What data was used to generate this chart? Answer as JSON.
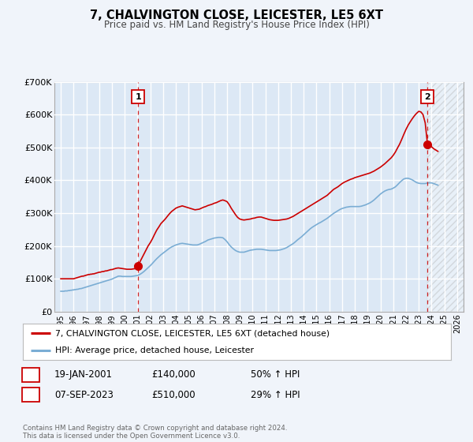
{
  "title": "7, CHALVINGTON CLOSE, LEICESTER, LE5 6XT",
  "subtitle": "Price paid vs. HM Land Registry's House Price Index (HPI)",
  "bg_color": "#f0f4fa",
  "plot_bg_color": "#dce8f5",
  "grid_color": "#ffffff",
  "red_line_color": "#cc0000",
  "blue_line_color": "#7aadd4",
  "marker1_date": 2001.05,
  "marker1_value": 140000,
  "marker2_date": 2023.68,
  "marker2_value": 510000,
  "vline1_date": 2001.05,
  "vline2_date": 2023.68,
  "ylim": [
    0,
    700000
  ],
  "xlim_start": 1994.5,
  "xlim_end": 2026.5,
  "ylabel_ticks": [
    0,
    100000,
    200000,
    300000,
    400000,
    500000,
    600000,
    700000
  ],
  "ylabel_labels": [
    "£0",
    "£100K",
    "£200K",
    "£300K",
    "£400K",
    "£500K",
    "£600K",
    "£700K"
  ],
  "xtick_years": [
    1995,
    1996,
    1997,
    1998,
    1999,
    2000,
    2001,
    2002,
    2003,
    2004,
    2005,
    2006,
    2007,
    2008,
    2009,
    2010,
    2011,
    2012,
    2013,
    2014,
    2015,
    2016,
    2017,
    2018,
    2019,
    2020,
    2021,
    2022,
    2023,
    2024,
    2025,
    2026
  ],
  "legend_red_label": "7, CHALVINGTON CLOSE, LEICESTER, LE5 6XT (detached house)",
  "legend_blue_label": "HPI: Average price, detached house, Leicester",
  "annotation1_label": "1",
  "annotation2_label": "2",
  "table_row1": [
    "1",
    "19-JAN-2001",
    "£140,000",
    "50% ↑ HPI"
  ],
  "table_row2": [
    "2",
    "07-SEP-2023",
    "£510,000",
    "29% ↑ HPI"
  ],
  "footer_text": "Contains HM Land Registry data © Crown copyright and database right 2024.\nThis data is licensed under the Open Government Licence v3.0.",
  "red_line_data_x": [
    1995.0,
    1995.08,
    1995.17,
    1995.25,
    1995.33,
    1995.42,
    1995.5,
    1995.58,
    1995.67,
    1995.75,
    1995.83,
    1995.92,
    1996.0,
    1996.08,
    1996.17,
    1996.25,
    1996.33,
    1996.42,
    1996.5,
    1996.58,
    1996.67,
    1996.75,
    1996.83,
    1996.92,
    1997.0,
    1997.08,
    1997.17,
    1997.25,
    1997.33,
    1997.42,
    1997.5,
    1997.58,
    1997.67,
    1997.75,
    1997.83,
    1997.92,
    1998.0,
    1998.08,
    1998.17,
    1998.25,
    1998.33,
    1998.42,
    1998.5,
    1998.58,
    1998.67,
    1998.75,
    1998.83,
    1998.92,
    1999.0,
    1999.17,
    1999.33,
    1999.5,
    1999.67,
    1999.83,
    2000.0,
    2000.17,
    2000.33,
    2000.5,
    2000.67,
    2000.83,
    2001.05,
    2001.17,
    2001.33,
    2001.5,
    2001.67,
    2001.83,
    2002.0,
    2002.17,
    2002.33,
    2002.5,
    2002.67,
    2002.83,
    2003.0,
    2003.17,
    2003.33,
    2003.5,
    2003.67,
    2003.83,
    2004.0,
    2004.17,
    2004.33,
    2004.5,
    2004.67,
    2004.83,
    2005.0,
    2005.17,
    2005.33,
    2005.5,
    2005.67,
    2005.83,
    2006.0,
    2006.17,
    2006.33,
    2006.5,
    2006.67,
    2006.83,
    2007.0,
    2007.17,
    2007.33,
    2007.5,
    2007.67,
    2007.83,
    2008.0,
    2008.17,
    2008.33,
    2008.5,
    2008.67,
    2008.83,
    2009.0,
    2009.17,
    2009.33,
    2009.5,
    2009.67,
    2009.83,
    2010.0,
    2010.17,
    2010.33,
    2010.5,
    2010.67,
    2010.83,
    2011.0,
    2011.17,
    2011.33,
    2011.5,
    2011.67,
    2011.83,
    2012.0,
    2012.17,
    2012.33,
    2012.5,
    2012.67,
    2012.83,
    2013.0,
    2013.17,
    2013.33,
    2013.5,
    2013.67,
    2013.83,
    2014.0,
    2014.17,
    2014.33,
    2014.5,
    2014.67,
    2014.83,
    2015.0,
    2015.17,
    2015.33,
    2015.5,
    2015.67,
    2015.83,
    2016.0,
    2016.17,
    2016.33,
    2016.5,
    2016.67,
    2016.83,
    2017.0,
    2017.17,
    2017.33,
    2017.5,
    2017.67,
    2017.83,
    2018.0,
    2018.17,
    2018.33,
    2018.5,
    2018.67,
    2018.83,
    2019.0,
    2019.17,
    2019.33,
    2019.5,
    2019.67,
    2019.83,
    2020.0,
    2020.17,
    2020.33,
    2020.5,
    2020.67,
    2020.83,
    2021.0,
    2021.17,
    2021.33,
    2021.5,
    2021.67,
    2021.83,
    2022.0,
    2022.17,
    2022.33,
    2022.5,
    2022.67,
    2022.83,
    2023.0,
    2023.17,
    2023.33,
    2023.5,
    2023.68,
    2024.0,
    2024.17,
    2024.5
  ],
  "red_line_data_y": [
    100000,
    100000,
    100000,
    100000,
    100000,
    100000,
    100000,
    100000,
    100000,
    100000,
    100000,
    100000,
    100000,
    101000,
    102000,
    103000,
    104000,
    105000,
    106000,
    107000,
    108000,
    108000,
    109000,
    110000,
    111000,
    112000,
    113000,
    113000,
    114000,
    114000,
    115000,
    115000,
    116000,
    117000,
    118000,
    119000,
    120000,
    120000,
    121000,
    122000,
    122000,
    123000,
    124000,
    124000,
    125000,
    126000,
    127000,
    128000,
    128000,
    130000,
    132000,
    133000,
    132000,
    131000,
    130000,
    129000,
    129000,
    129000,
    130000,
    131000,
    140000,
    150000,
    162000,
    175000,
    188000,
    200000,
    210000,
    222000,
    235000,
    248000,
    258000,
    268000,
    275000,
    282000,
    290000,
    298000,
    305000,
    310000,
    315000,
    318000,
    320000,
    322000,
    320000,
    318000,
    316000,
    314000,
    312000,
    310000,
    311000,
    312000,
    315000,
    318000,
    320000,
    323000,
    325000,
    327000,
    330000,
    332000,
    335000,
    338000,
    340000,
    338000,
    335000,
    326000,
    315000,
    305000,
    295000,
    287000,
    282000,
    280000,
    279000,
    280000,
    281000,
    282000,
    284000,
    285000,
    287000,
    288000,
    288000,
    286000,
    284000,
    282000,
    280000,
    279000,
    278000,
    278000,
    278000,
    279000,
    280000,
    281000,
    282000,
    284000,
    287000,
    290000,
    294000,
    298000,
    302000,
    306000,
    310000,
    314000,
    318000,
    322000,
    326000,
    330000,
    334000,
    338000,
    342000,
    346000,
    350000,
    354000,
    360000,
    366000,
    372000,
    376000,
    380000,
    385000,
    390000,
    394000,
    397000,
    400000,
    403000,
    405000,
    408000,
    410000,
    412000,
    414000,
    416000,
    418000,
    420000,
    422000,
    425000,
    428000,
    432000,
    436000,
    440000,
    445000,
    450000,
    456000,
    462000,
    468000,
    476000,
    486000,
    498000,
    510000,
    525000,
    540000,
    555000,
    568000,
    578000,
    588000,
    597000,
    604000,
    610000,
    608000,
    600000,
    575000,
    510000,
    502000,
    496000,
    488000
  ],
  "blue_line_data_x": [
    1995.0,
    1995.08,
    1995.17,
    1995.25,
    1995.33,
    1995.42,
    1995.5,
    1995.58,
    1995.67,
    1995.75,
    1995.83,
    1995.92,
    1996.0,
    1996.08,
    1996.17,
    1996.25,
    1996.33,
    1996.42,
    1996.5,
    1996.58,
    1996.67,
    1996.75,
    1996.83,
    1996.92,
    1997.0,
    1997.08,
    1997.17,
    1997.25,
    1997.33,
    1997.42,
    1997.5,
    1997.58,
    1997.67,
    1997.75,
    1997.83,
    1997.92,
    1998.0,
    1998.08,
    1998.17,
    1998.25,
    1998.33,
    1998.42,
    1998.5,
    1998.58,
    1998.67,
    1998.75,
    1998.83,
    1998.92,
    1999.0,
    1999.17,
    1999.33,
    1999.5,
    1999.67,
    1999.83,
    2000.0,
    2000.17,
    2000.33,
    2000.5,
    2000.67,
    2000.83,
    2001.0,
    2001.17,
    2001.33,
    2001.5,
    2001.67,
    2001.83,
    2002.0,
    2002.17,
    2002.33,
    2002.5,
    2002.67,
    2002.83,
    2003.0,
    2003.17,
    2003.33,
    2003.5,
    2003.67,
    2003.83,
    2004.0,
    2004.17,
    2004.33,
    2004.5,
    2004.67,
    2004.83,
    2005.0,
    2005.17,
    2005.33,
    2005.5,
    2005.67,
    2005.83,
    2006.0,
    2006.17,
    2006.33,
    2006.5,
    2006.67,
    2006.83,
    2007.0,
    2007.17,
    2007.33,
    2007.5,
    2007.67,
    2007.83,
    2008.0,
    2008.17,
    2008.33,
    2008.5,
    2008.67,
    2008.83,
    2009.0,
    2009.17,
    2009.33,
    2009.5,
    2009.67,
    2009.83,
    2010.0,
    2010.17,
    2010.33,
    2010.5,
    2010.67,
    2010.83,
    2011.0,
    2011.17,
    2011.33,
    2011.5,
    2011.67,
    2011.83,
    2012.0,
    2012.17,
    2012.33,
    2012.5,
    2012.67,
    2012.83,
    2013.0,
    2013.17,
    2013.33,
    2013.5,
    2013.67,
    2013.83,
    2014.0,
    2014.17,
    2014.33,
    2014.5,
    2014.67,
    2014.83,
    2015.0,
    2015.17,
    2015.33,
    2015.5,
    2015.67,
    2015.83,
    2016.0,
    2016.17,
    2016.33,
    2016.5,
    2016.67,
    2016.83,
    2017.0,
    2017.17,
    2017.33,
    2017.5,
    2017.67,
    2017.83,
    2018.0,
    2018.17,
    2018.33,
    2018.5,
    2018.67,
    2018.83,
    2019.0,
    2019.17,
    2019.33,
    2019.5,
    2019.67,
    2019.83,
    2020.0,
    2020.17,
    2020.33,
    2020.5,
    2020.67,
    2020.83,
    2021.0,
    2021.17,
    2021.33,
    2021.5,
    2021.67,
    2021.83,
    2022.0,
    2022.17,
    2022.33,
    2022.5,
    2022.67,
    2022.83,
    2023.0,
    2023.17,
    2023.33,
    2023.5,
    2023.68,
    2024.0,
    2024.17,
    2024.5
  ],
  "blue_line_data_y": [
    62000,
    62000,
    62000,
    62000,
    63000,
    63000,
    63000,
    64000,
    64000,
    65000,
    65000,
    66000,
    66000,
    67000,
    67000,
    68000,
    68000,
    69000,
    70000,
    70000,
    71000,
    72000,
    73000,
    74000,
    75000,
    76000,
    77000,
    78000,
    79000,
    80000,
    81000,
    82000,
    83000,
    84000,
    85000,
    86000,
    87000,
    88000,
    89000,
    90000,
    91000,
    92000,
    93000,
    94000,
    95000,
    96000,
    97000,
    98000,
    99000,
    102000,
    105000,
    108000,
    108000,
    107000,
    107000,
    107000,
    107000,
    107000,
    108000,
    109000,
    110000,
    113000,
    117000,
    122000,
    128000,
    134000,
    140000,
    147000,
    154000,
    161000,
    167000,
    173000,
    178000,
    183000,
    188000,
    193000,
    197000,
    200000,
    203000,
    205000,
    207000,
    208000,
    207000,
    206000,
    205000,
    204000,
    203000,
    203000,
    203000,
    205000,
    208000,
    211000,
    214000,
    218000,
    220000,
    222000,
    224000,
    225000,
    226000,
    226000,
    225000,
    220000,
    213000,
    204000,
    197000,
    191000,
    186000,
    183000,
    181000,
    181000,
    181000,
    183000,
    185000,
    187000,
    188000,
    189000,
    190000,
    190000,
    190000,
    189000,
    188000,
    187000,
    186000,
    186000,
    186000,
    186000,
    187000,
    188000,
    190000,
    192000,
    195000,
    199000,
    203000,
    207000,
    212000,
    218000,
    223000,
    228000,
    234000,
    240000,
    246000,
    252000,
    257000,
    261000,
    265000,
    269000,
    272000,
    276000,
    280000,
    284000,
    289000,
    294000,
    299000,
    303000,
    307000,
    311000,
    314000,
    316000,
    318000,
    319000,
    320000,
    320000,
    320000,
    320000,
    320000,
    321000,
    323000,
    325000,
    328000,
    331000,
    335000,
    340000,
    346000,
    352000,
    358000,
    363000,
    367000,
    370000,
    372000,
    373000,
    376000,
    380000,
    386000,
    393000,
    399000,
    404000,
    406000,
    406000,
    404000,
    401000,
    397000,
    393000,
    391000,
    390000,
    390000,
    390000,
    392000,
    392000,
    390000,
    385000
  ]
}
